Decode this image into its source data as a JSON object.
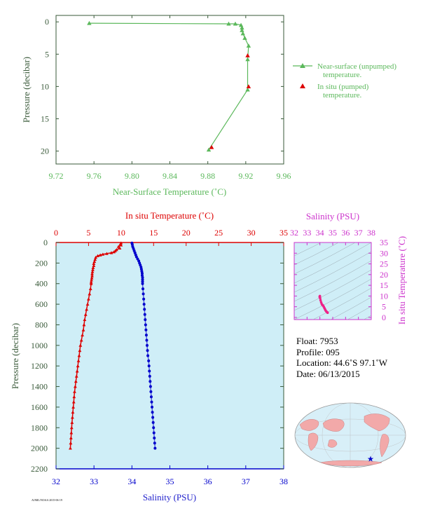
{
  "colors": {
    "nearsurface": "#5bb85b",
    "insitu": "#dd0000",
    "salinity": "#0000cc",
    "ts": "#ee2288",
    "panel_bg": "#cfeef7",
    "axis_dark": "#3a5a3a",
    "magenta_axis": "#cc33cc"
  },
  "chart_data": [
    {
      "type": "line",
      "xlabel": "Near-Surface Temperature (˚C)",
      "ylabel": "Pressure (decibar)",
      "xlim": [
        9.72,
        9.96
      ],
      "ylim": [
        22,
        -1
      ],
      "xticks": [
        "9.72",
        "9.76",
        "9.80",
        "9.84",
        "9.88",
        "9.92",
        "9.96"
      ],
      "yticks": [
        "0",
        "5",
        "10",
        "15",
        "20"
      ],
      "legend_position": "right",
      "series": [
        {
          "name": "Near-surface (unpumped) temperature.",
          "marker": "triangle",
          "points": [
            [
              9.755,
              0.2
            ],
            [
              9.902,
              0.3
            ],
            [
              9.909,
              0.3
            ],
            [
              9.915,
              0.5
            ],
            [
              9.916,
              0.9
            ],
            [
              9.916,
              1.3
            ],
            [
              9.917,
              1.8
            ],
            [
              9.919,
              2.5
            ],
            [
              9.923,
              3.7
            ],
            [
              9.922,
              5.8
            ],
            [
              9.922,
              10.5
            ],
            [
              9.881,
              19.8
            ]
          ]
        },
        {
          "name": "In situ (pumped) temperature.",
          "marker": "triangle",
          "line": false,
          "points": [
            [
              9.922,
              5.2
            ],
            [
              9.923,
              10.0
            ],
            [
              9.884,
              19.4
            ]
          ]
        }
      ]
    },
    {
      "type": "scatter",
      "xlabel": "Salinity (PSU)",
      "x2label": "In situ Temperature (˚C)",
      "ylabel": "Pressure (decibar)",
      "xlim": [
        32,
        38
      ],
      "x2lim": [
        0,
        35
      ],
      "ylim": [
        2200,
        0
      ],
      "xticks": [
        "32",
        "33",
        "34",
        "35",
        "36",
        "37",
        "38"
      ],
      "x2ticks": [
        "0",
        "5",
        "10",
        "15",
        "20",
        "25",
        "30",
        "35"
      ],
      "yticks": [
        "0",
        "200",
        "400",
        "600",
        "800",
        "1000",
        "1200",
        "1400",
        "1600",
        "1800",
        "2000",
        "2200"
      ],
      "series": [
        {
          "name": "In situ Temperature (˚C)",
          "axis": "top",
          "marker": "triangle",
          "points": [
            [
              10.0,
              5
            ],
            [
              9.9,
              15
            ],
            [
              10.0,
              25
            ],
            [
              9.6,
              40
            ],
            [
              9.8,
              55
            ],
            [
              9.3,
              70
            ],
            [
              9.1,
              82
            ],
            [
              8.9,
              92
            ],
            [
              8.5,
              100
            ],
            [
              7.8,
              108
            ],
            [
              7.2,
              115
            ],
            [
              6.8,
              122
            ],
            [
              6.4,
              130
            ],
            [
              6.1,
              145
            ],
            [
              6.0,
              165
            ],
            [
              5.9,
              185
            ],
            [
              5.8,
              205
            ],
            [
              5.8,
              225
            ],
            [
              5.7,
              245
            ],
            [
              5.65,
              265
            ],
            [
              5.6,
              285
            ],
            [
              5.55,
              305
            ],
            [
              5.55,
              325
            ],
            [
              5.5,
              345
            ],
            [
              5.45,
              365
            ],
            [
              5.4,
              385
            ],
            [
              5.4,
              400
            ],
            [
              5.3,
              450
            ],
            [
              5.15,
              500
            ],
            [
              5.0,
              550
            ],
            [
              4.85,
              600
            ],
            [
              4.7,
              650
            ],
            [
              4.55,
              700
            ],
            [
              4.4,
              750
            ],
            [
              4.3,
              800
            ],
            [
              4.2,
              850
            ],
            [
              4.05,
              900
            ],
            [
              3.9,
              950
            ],
            [
              3.75,
              1000
            ],
            [
              3.65,
              1050
            ],
            [
              3.55,
              1100
            ],
            [
              3.45,
              1150
            ],
            [
              3.35,
              1200
            ],
            [
              3.25,
              1250
            ],
            [
              3.15,
              1300
            ],
            [
              3.05,
              1350
            ],
            [
              2.95,
              1400
            ],
            [
              2.85,
              1450
            ],
            [
              2.78,
              1500
            ],
            [
              2.72,
              1550
            ],
            [
              2.65,
              1600
            ],
            [
              2.58,
              1650
            ],
            [
              2.52,
              1700
            ],
            [
              2.46,
              1750
            ],
            [
              2.4,
              1800
            ],
            [
              2.35,
              1850
            ],
            [
              2.3,
              1900
            ],
            [
              2.25,
              1950
            ],
            [
              2.2,
              2000
            ]
          ]
        },
        {
          "name": "Salinity (PSU)",
          "axis": "bottom",
          "marker": "circle",
          "points": [
            [
              34.0,
              5
            ],
            [
              34.01,
              20
            ],
            [
              34.02,
              40
            ],
            [
              34.04,
              60
            ],
            [
              34.06,
              80
            ],
            [
              34.08,
              100
            ],
            [
              34.1,
              120
            ],
            [
              34.12,
              140
            ],
            [
              34.15,
              160
            ],
            [
              34.18,
              180
            ],
            [
              34.2,
              200
            ],
            [
              34.22,
              220
            ],
            [
              34.24,
              240
            ],
            [
              34.25,
              260
            ],
            [
              34.26,
              280
            ],
            [
              34.27,
              300
            ],
            [
              34.27,
              320
            ],
            [
              34.28,
              340
            ],
            [
              34.28,
              360
            ],
            [
              34.28,
              380
            ],
            [
              34.28,
              400
            ],
            [
              34.29,
              450
            ],
            [
              34.3,
              500
            ],
            [
              34.31,
              550
            ],
            [
              34.32,
              600
            ],
            [
              34.33,
              650
            ],
            [
              34.34,
              700
            ],
            [
              34.35,
              750
            ],
            [
              34.36,
              800
            ],
            [
              34.37,
              850
            ],
            [
              34.38,
              900
            ],
            [
              34.39,
              950
            ],
            [
              34.4,
              1000
            ],
            [
              34.41,
              1050
            ],
            [
              34.42,
              1100
            ],
            [
              34.44,
              1150
            ],
            [
              34.45,
              1200
            ],
            [
              34.46,
              1250
            ],
            [
              34.47,
              1300
            ],
            [
              34.48,
              1350
            ],
            [
              34.49,
              1400
            ],
            [
              34.5,
              1450
            ],
            [
              34.51,
              1500
            ],
            [
              34.52,
              1550
            ],
            [
              34.53,
              1600
            ],
            [
              34.54,
              1650
            ],
            [
              34.55,
              1700
            ],
            [
              34.56,
              1750
            ],
            [
              34.57,
              1800
            ],
            [
              34.58,
              1850
            ],
            [
              34.59,
              1900
            ],
            [
              34.6,
              1950
            ],
            [
              34.61,
              2000
            ]
          ]
        }
      ]
    },
    {
      "type": "line",
      "xlabel": "Salinity (PSU)",
      "ylabel": "In situ Temperature (˚C)",
      "xlim": [
        32,
        38
      ],
      "ylim": [
        -1,
        35
      ],
      "xticks": [
        "32",
        "33",
        "34",
        "35",
        "36",
        "37",
        "38"
      ],
      "yticks": [
        "0",
        "5",
        "10",
        "15",
        "20",
        "25",
        "30",
        "35"
      ],
      "series": [
        {
          "marker": "circle",
          "points": [
            [
              34.0,
              10.0
            ],
            [
              33.98,
              9.6
            ],
            [
              34.02,
              9.0
            ],
            [
              34.05,
              8.0
            ],
            [
              34.1,
              7.0
            ],
            [
              34.15,
              6.2
            ],
            [
              34.2,
              5.8
            ],
            [
              34.25,
              5.5
            ],
            [
              34.3,
              5.0
            ],
            [
              34.35,
              4.4
            ],
            [
              34.4,
              3.8
            ],
            [
              34.45,
              3.2
            ],
            [
              34.5,
              2.8
            ],
            [
              34.55,
              2.5
            ],
            [
              34.6,
              2.2
            ]
          ]
        }
      ]
    }
  ],
  "float_info": {
    "float": "Float:  7953",
    "profile": "Profile:  095",
    "location": "Location:  44.6˚S  97.1˚W",
    "date": "Date:  06/13/2015"
  },
  "footer_note": "AOML/NOAA 2015-06-19"
}
